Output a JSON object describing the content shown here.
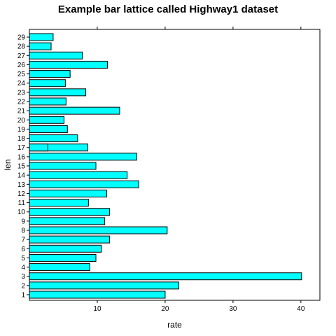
{
  "chart_data": {
    "type": "bar",
    "orientation": "horizontal",
    "title": "Example bar lattice called Highway1 dataset",
    "xlabel": "rate",
    "ylabel": "len",
    "xlim": [
      0,
      42.8
    ],
    "xticks": [
      10,
      20,
      30,
      40
    ],
    "categories": [
      "1",
      "2",
      "3",
      "4",
      "5",
      "6",
      "7",
      "8",
      "9",
      "10",
      "11",
      "12",
      "13",
      "14",
      "15",
      "16",
      "17",
      "18",
      "19",
      "20",
      "21",
      "22",
      "23",
      "24",
      "25",
      "26",
      "27",
      "28",
      "29"
    ],
    "values": [
      20.0,
      22.0,
      40.1,
      8.9,
      9.8,
      10.6,
      11.8,
      20.3,
      11.1,
      11.8,
      8.7,
      11.4,
      16.1,
      14.4,
      9.8,
      15.8,
      8.6,
      7.1,
      5.6,
      5.1,
      13.3,
      5.4,
      8.3,
      5.3,
      6.0,
      11.5,
      7.8,
      3.2,
      3.5
    ],
    "overlay_values": {
      "17": 2.7
    },
    "bar_color": "#00ffff",
    "grid": false
  }
}
